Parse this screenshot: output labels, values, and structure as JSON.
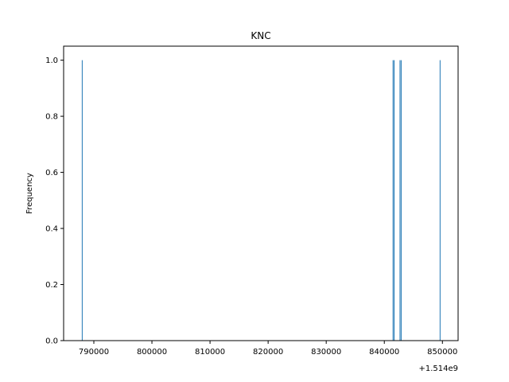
{
  "chart_data": {
    "type": "bar",
    "title": "KNC",
    "xlabel": "",
    "ylabel": "Frequency",
    "x_offset_label": "+1.514e9",
    "x_offset": 1514000000,
    "xlim": [
      784800,
      852700
    ],
    "ylim": [
      0,
      1.05
    ],
    "x_ticks": [
      790000,
      800000,
      810000,
      820000,
      830000,
      840000,
      850000
    ],
    "x_tick_labels": [
      "790000",
      "800000",
      "810000",
      "820000",
      "830000",
      "840000",
      "850000"
    ],
    "y_ticks": [
      0,
      0.2,
      0.4,
      0.6,
      0.8,
      1.0
    ],
    "y_tick_labels": [
      "0.0",
      "0.2",
      "0.4",
      "0.6",
      "0.8",
      "1.0"
    ],
    "bar_color": "#1f77b4",
    "grid": false,
    "bars": [
      {
        "x": 788000,
        "value": 1
      },
      {
        "x": 841500,
        "value": 1
      },
      {
        "x": 841700,
        "value": 1
      },
      {
        "x": 842700,
        "value": 1
      },
      {
        "x": 842900,
        "value": 1
      },
      {
        "x": 849600,
        "value": 1
      }
    ]
  }
}
